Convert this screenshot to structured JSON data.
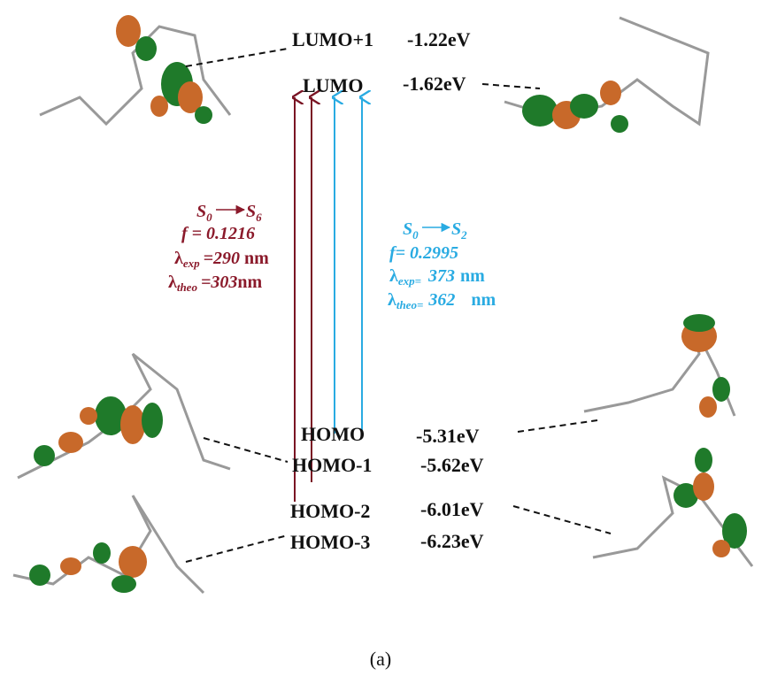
{
  "orbitals": [
    {
      "label": "LUMO+1",
      "energy": "-1.22eV"
    },
    {
      "label": "LUMO",
      "energy": "-1.62eV"
    },
    {
      "label": "HOMO",
      "energy": "-5.31eV"
    },
    {
      "label": "HOMO-1",
      "energy": "-5.62eV"
    },
    {
      "label": "HOMO-2",
      "energy": "-6.01eV"
    },
    {
      "label": "HOMO-3",
      "energy": "-6.23eV"
    }
  ],
  "transitions": [
    {
      "from": {
        "symbol": "S",
        "sub": "0"
      },
      "to": {
        "symbol": "S",
        "sub": "6"
      },
      "f": "f = 0.1216",
      "lambda_exp": {
        "symbol": "λ",
        "sub": "exp",
        "value": "=290",
        "unit": "nm"
      },
      "lambda_theo": {
        "symbol": "λ",
        "sub": "theo",
        "value": "=303",
        "unit": "nm"
      }
    },
    {
      "from": {
        "symbol": "S",
        "sub": "0"
      },
      "to": {
        "symbol": "S",
        "sub": "2"
      },
      "f": "f= 0.2995",
      "lambda_exp": {
        "symbol": "λ",
        "sub": "exp=",
        "value": "373",
        "unit": "nm"
      },
      "lambda_theo": {
        "symbol": "λ",
        "sub": "theo=",
        "value": "362",
        "unit": "nm"
      }
    }
  ],
  "caption": "(a)"
}
